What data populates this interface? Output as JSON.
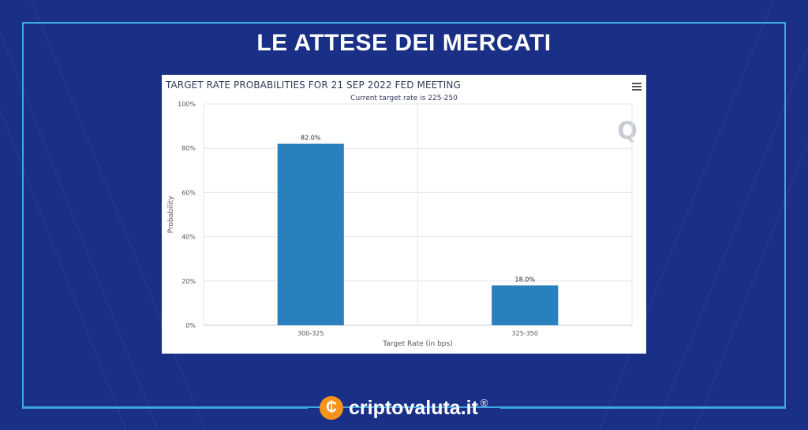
{
  "headline": "LE ATTESE DEI MERCATI",
  "colors": {
    "background": "#1a2f86",
    "frame": "#3ea6e6",
    "bar": "#2980bd",
    "logo": "#f7931a"
  },
  "brand": {
    "logo_symbol": "₵",
    "name": "criptovaluta.it",
    "registered": "®"
  },
  "chart_data": {
    "type": "bar",
    "title": "TARGET RATE PROBABILITIES FOR 21 SEP 2022 FED MEETING",
    "subtitle": "Current target rate is 225-250",
    "xlabel": "Target Rate (in bps)",
    "ylabel": "Probability",
    "categories": [
      "300-325",
      "325-350"
    ],
    "values": [
      82.0,
      18.0
    ],
    "data_labels": [
      "82.0%",
      "18.0%"
    ],
    "ylim": [
      0,
      100
    ],
    "yticks": [
      "0%",
      "20%",
      "40%",
      "60%",
      "80%",
      "100%"
    ],
    "grid": true,
    "watermark": "Q"
  }
}
